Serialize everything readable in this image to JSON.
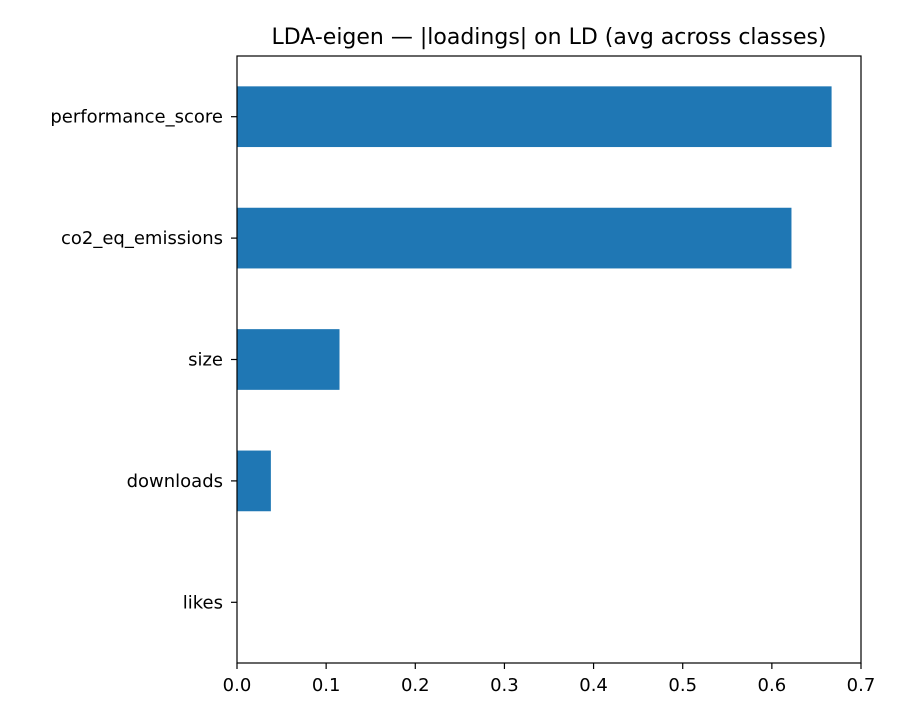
{
  "chart_data": {
    "type": "bar",
    "orientation": "horizontal",
    "title": "LDA-eigen — |loadings| on LD (avg across classes)",
    "xlabel": "",
    "ylabel": "",
    "categories": [
      "performance_score",
      "co2_eq_emissions",
      "size",
      "downloads",
      "likes"
    ],
    "values": [
      0.667,
      0.622,
      0.115,
      0.038,
      0.0
    ],
    "xlim": [
      0,
      0.7
    ],
    "xticks": [
      "0.0",
      "0.1",
      "0.2",
      "0.3",
      "0.4",
      "0.5",
      "0.6",
      "0.7"
    ],
    "grid": false,
    "bar_color": "#1f77b4"
  }
}
